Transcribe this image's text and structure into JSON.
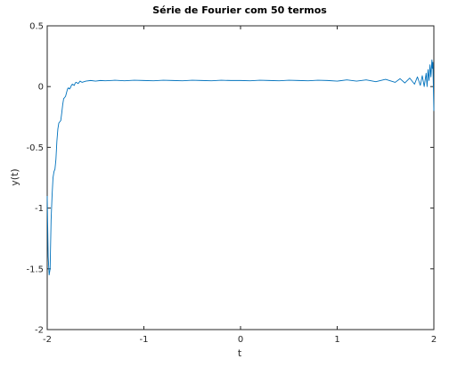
{
  "chart_data": {
    "type": "line",
    "title": "Série de Fourier com 50 termos",
    "xlabel": "t",
    "ylabel": "y(t)",
    "xlim": [
      -2,
      2
    ],
    "ylim": [
      -2,
      0.5
    ],
    "xticks": [
      -2,
      -1,
      0,
      1,
      2
    ],
    "xtick_labels": [
      "-2",
      "-1",
      "0",
      "1",
      "2"
    ],
    "yticks": [
      -2,
      -1.5,
      -1,
      -0.5,
      0,
      0.5
    ],
    "ytick_labels": [
      "-2",
      "-1.5",
      "-1",
      "-0.5",
      "0",
      "0.5"
    ],
    "grid": false,
    "legend": "none",
    "line_color": "#0072bd",
    "axis_color": "#262626",
    "series": [
      {
        "x": [
          -2.0,
          -1.99,
          -1.98,
          -1.97,
          -1.96,
          -1.95,
          -1.94,
          -1.93,
          -1.92,
          -1.91,
          -1.9,
          -1.89,
          -1.88,
          -1.87,
          -1.86,
          -1.85,
          -1.84,
          -1.83,
          -1.82,
          -1.81,
          -1.8,
          -1.79,
          -1.78,
          -1.77,
          -1.76,
          -1.75,
          -1.74,
          -1.73,
          -1.72,
          -1.71,
          -1.7,
          -1.69,
          -1.68,
          -1.67,
          -1.66,
          -1.65,
          -1.64,
          -1.6,
          -1.55,
          -1.5,
          -1.45,
          -1.4,
          -1.3,
          -1.2,
          -1.1,
          -1.0,
          -0.9,
          -0.8,
          -0.7,
          -0.6,
          -0.5,
          -0.4,
          -0.3,
          -0.2,
          -0.1,
          0.0,
          0.1,
          0.2,
          0.3,
          0.4,
          0.5,
          0.6,
          0.7,
          0.8,
          0.9,
          1.0,
          1.1,
          1.2,
          1.3,
          1.4,
          1.5,
          1.6,
          1.65,
          1.7,
          1.75,
          1.8,
          1.83,
          1.86,
          1.88,
          1.9,
          1.92,
          1.93,
          1.94,
          1.95,
          1.96,
          1.97,
          1.98,
          1.985,
          1.99,
          1.995,
          2.0
        ],
        "y": [
          -0.9,
          -1.4,
          -1.55,
          -1.5,
          -1.1,
          -0.9,
          -0.75,
          -0.7,
          -0.68,
          -0.6,
          -0.45,
          -0.35,
          -0.3,
          -0.29,
          -0.28,
          -0.22,
          -0.15,
          -0.1,
          -0.09,
          -0.08,
          -0.05,
          -0.02,
          -0.01,
          -0.02,
          -0.01,
          0.01,
          0.02,
          0.015,
          0.01,
          0.03,
          0.035,
          0.03,
          0.025,
          0.035,
          0.045,
          0.04,
          0.035,
          0.045,
          0.05,
          0.045,
          0.05,
          0.048,
          0.052,
          0.048,
          0.052,
          0.05,
          0.048,
          0.052,
          0.05,
          0.048,
          0.052,
          0.05,
          0.048,
          0.052,
          0.05,
          0.05,
          0.048,
          0.052,
          0.05,
          0.048,
          0.052,
          0.05,
          0.048,
          0.052,
          0.05,
          0.045,
          0.055,
          0.045,
          0.055,
          0.04,
          0.06,
          0.035,
          0.065,
          0.03,
          0.07,
          0.02,
          0.08,
          0.01,
          0.09,
          0.0,
          0.11,
          0.0,
          0.14,
          0.05,
          0.18,
          0.08,
          0.22,
          0.15,
          0.2,
          0.0,
          -0.2
        ]
      }
    ]
  }
}
